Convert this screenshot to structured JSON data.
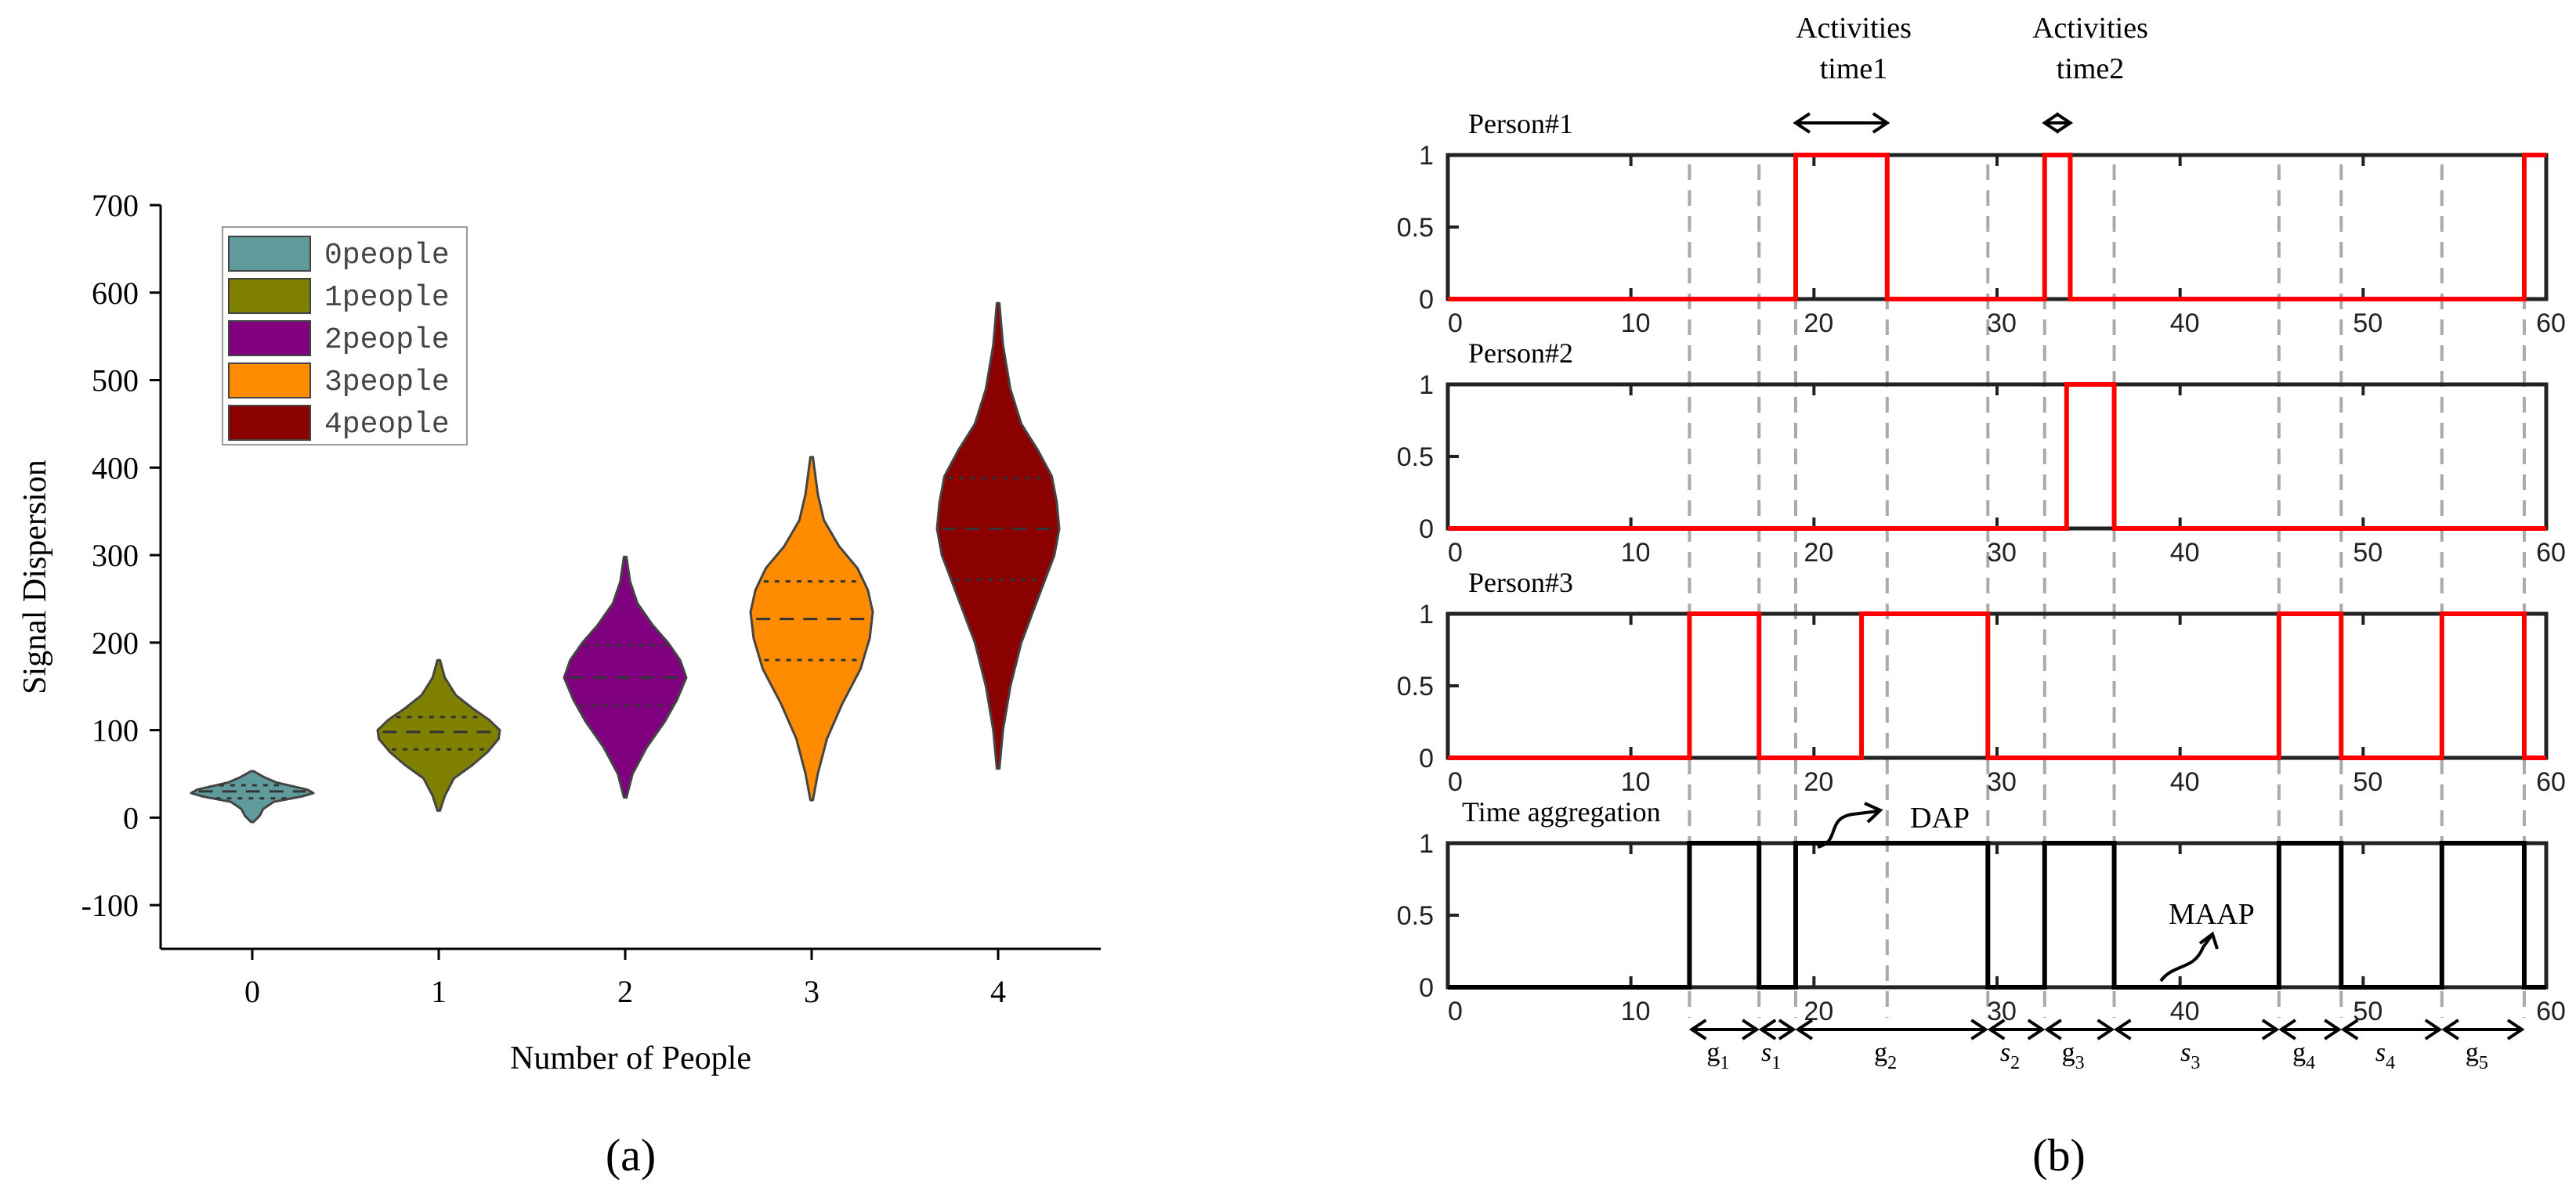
{
  "chart_data": [
    {
      "type": "violin",
      "caption": "(a)",
      "xlabel": "Number of People",
      "ylabel": "Signal Dispersion",
      "ylim": [
        -150,
        700
      ],
      "yticks": [
        -100,
        0,
        100,
        200,
        300,
        400,
        500,
        600,
        700
      ],
      "categories": [
        "0",
        "1",
        "2",
        "3",
        "4"
      ],
      "legend": {
        "placement": "top-left"
      },
      "series": [
        {
          "name": "0people",
          "color": "#5F9B9B",
          "min": -5,
          "q1": 22,
          "median": 30,
          "q3": 37,
          "max": 53,
          "profile": [
            [
              -5,
              0.02
            ],
            [
              2,
              0.12
            ],
            [
              10,
              0.18
            ],
            [
              18,
              0.35
            ],
            [
              24,
              0.8
            ],
            [
              28,
              1.0
            ],
            [
              32,
              0.9
            ],
            [
              36,
              0.65
            ],
            [
              40,
              0.4
            ],
            [
              46,
              0.2
            ],
            [
              53,
              0.02
            ]
          ]
        },
        {
          "name": "1people",
          "color": "#808000",
          "min": 8,
          "q1": 78,
          "median": 98,
          "q3": 115,
          "max": 180,
          "profile": [
            [
              8,
              0.02
            ],
            [
              25,
              0.1
            ],
            [
              45,
              0.25
            ],
            [
              60,
              0.55
            ],
            [
              75,
              0.8
            ],
            [
              90,
              0.98
            ],
            [
              100,
              1.0
            ],
            [
              112,
              0.82
            ],
            [
              125,
              0.55
            ],
            [
              140,
              0.28
            ],
            [
              160,
              0.1
            ],
            [
              180,
              0.02
            ]
          ]
        },
        {
          "name": "2people",
          "color": "#800080",
          "min": 23,
          "q1": 128,
          "median": 160,
          "q3": 197,
          "max": 298,
          "profile": [
            [
              23,
              0.02
            ],
            [
              50,
              0.12
            ],
            [
              80,
              0.35
            ],
            [
              110,
              0.65
            ],
            [
              135,
              0.85
            ],
            [
              160,
              1.0
            ],
            [
              180,
              0.9
            ],
            [
              200,
              0.7
            ],
            [
              220,
              0.45
            ],
            [
              245,
              0.2
            ],
            [
              270,
              0.08
            ],
            [
              298,
              0.02
            ]
          ]
        },
        {
          "name": "3people",
          "color": "#FF8C00",
          "min": 20,
          "q1": 180,
          "median": 227,
          "q3": 270,
          "max": 412,
          "profile": [
            [
              20,
              0.02
            ],
            [
              50,
              0.1
            ],
            [
              90,
              0.25
            ],
            [
              130,
              0.5
            ],
            [
              170,
              0.8
            ],
            [
              205,
              0.95
            ],
            [
              235,
              1.0
            ],
            [
              260,
              0.92
            ],
            [
              285,
              0.75
            ],
            [
              310,
              0.45
            ],
            [
              340,
              0.2
            ],
            [
              370,
              0.1
            ],
            [
              412,
              0.02
            ]
          ]
        },
        {
          "name": "4people",
          "color": "#8B0000",
          "min": 56,
          "q1": 272,
          "median": 330,
          "q3": 388,
          "max": 588,
          "profile": [
            [
              56,
              0.02
            ],
            [
              100,
              0.08
            ],
            [
              150,
              0.2
            ],
            [
              200,
              0.38
            ],
            [
              250,
              0.65
            ],
            [
              300,
              0.92
            ],
            [
              330,
              1.0
            ],
            [
              360,
              0.96
            ],
            [
              390,
              0.88
            ],
            [
              420,
              0.65
            ],
            [
              450,
              0.38
            ],
            [
              490,
              0.2
            ],
            [
              540,
              0.08
            ],
            [
              588,
              0.02
            ]
          ]
        }
      ]
    },
    {
      "type": "step",
      "caption": "(b)",
      "xlim": [
        0,
        60
      ],
      "ylim": [
        0,
        1
      ],
      "xticks": [
        0,
        10,
        20,
        30,
        40,
        50,
        60
      ],
      "yticks": [
        "0",
        "0.5",
        "1"
      ],
      "guides": [
        13.2,
        17.0,
        19.0,
        24.0,
        29.5,
        32.6,
        36.4,
        45.4,
        48.8,
        54.3,
        58.8
      ],
      "panels": [
        {
          "label": "Person#1",
          "color": "#FF0000",
          "intervals": [
            [
              19.0,
              24.0
            ],
            [
              32.6,
              34.0
            ],
            [
              58.8,
              60
            ]
          ]
        },
        {
          "label": "Person#2",
          "color": "#FF0000",
          "intervals": [
            [
              33.8,
              36.4
            ]
          ]
        },
        {
          "label": "Person#3",
          "color": "#FF0000",
          "intervals": [
            [
              13.2,
              17.0
            ],
            [
              22.6,
              29.5
            ],
            [
              45.4,
              48.8
            ],
            [
              54.3,
              58.8
            ]
          ]
        },
        {
          "label": "Time aggregation",
          "color": "#000000",
          "intervals": [
            [
              13.2,
              17.0
            ],
            [
              19.0,
              29.5
            ],
            [
              32.6,
              36.4
            ],
            [
              45.4,
              48.8
            ],
            [
              54.3,
              58.8
            ]
          ]
        }
      ],
      "activities": [
        {
          "label_line1": "Activities",
          "label_line2": "time1",
          "from": 19.0,
          "to": 24.0
        },
        {
          "label_line1": "Activities",
          "label_line2": "time2",
          "from": 32.6,
          "to": 34.0
        }
      ],
      "annotations": [
        {
          "text": "DAP",
          "x": 24.5,
          "y": 1.15
        },
        {
          "text": "MAAP",
          "x": 38.5,
          "y": 0.45
        }
      ],
      "segments": [
        {
          "base": "g",
          "sub": "1",
          "from": 13.2,
          "to": 17.0
        },
        {
          "base": "s",
          "sub": "1",
          "from": 17.0,
          "to": 19.0
        },
        {
          "base": "g",
          "sub": "2",
          "from": 19.0,
          "to": 29.5
        },
        {
          "base": "s",
          "sub": "2",
          "from": 29.5,
          "to": 32.6
        },
        {
          "base": "g",
          "sub": "3",
          "from": 32.6,
          "to": 36.4
        },
        {
          "base": "s",
          "sub": "3",
          "from": 36.4,
          "to": 45.4
        },
        {
          "base": "g",
          "sub": "4",
          "from": 45.4,
          "to": 48.8
        },
        {
          "base": "s",
          "sub": "4",
          "from": 48.8,
          "to": 54.3
        },
        {
          "base": "g",
          "sub": "5",
          "from": 54.3,
          "to": 58.8
        }
      ]
    }
  ]
}
